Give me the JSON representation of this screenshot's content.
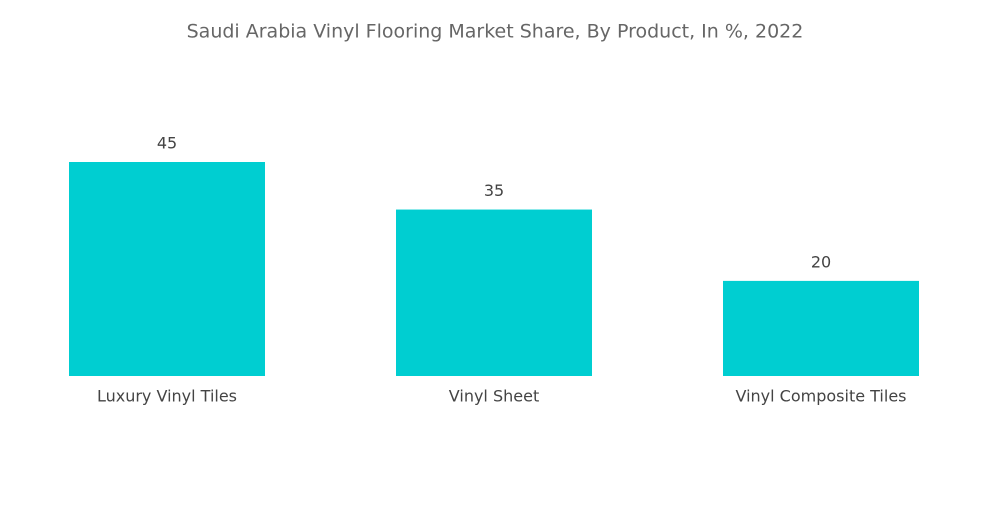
{
  "chart_data": {
    "type": "bar",
    "title": "Saudi Arabia Vinyl Flooring Market Share, By Product, In %, 2022",
    "categories": [
      "Luxury Vinyl Tiles",
      "Vinyl Sheet",
      "Vinyl Composite Tiles"
    ],
    "values": [
      45,
      35,
      20
    ],
    "color": "#00ced1"
  }
}
